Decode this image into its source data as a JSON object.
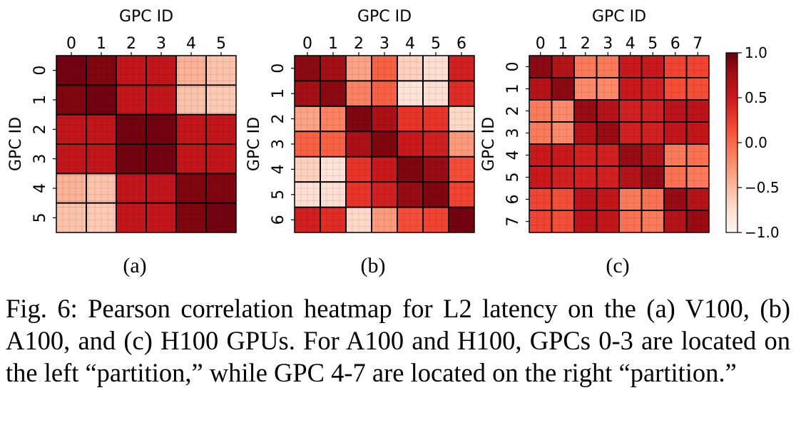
{
  "caption": "Fig. 6: Pearson correlation heatmap for L2 latency on the (a) V100, (b) A100, and (c) H100 GPUs. For A100 and H100, GPCs 0-3 are located on the left “partition,” while GPC 4-7 are located on the right “partition.”",
  "colorbar": {
    "ticks": [
      "1.0",
      "0.5",
      "0.0",
      "−0.5",
      "−1.0"
    ],
    "vmin": -1.0,
    "vmax": 1.0,
    "colormap": "Reds",
    "low_color": "#fff5f0",
    "high_color": "#67000d"
  },
  "chart_data": [
    {
      "type": "heatmap",
      "panel_label": "(a)",
      "xlabel": "GPC ID",
      "ylabel": "GPC ID",
      "x_axis_position": "top",
      "categories": [
        "0",
        "1",
        "2",
        "3",
        "4",
        "5"
      ],
      "values": [
        [
          0.95,
          0.9,
          0.55,
          0.55,
          -0.45,
          -0.55
        ],
        [
          0.9,
          0.95,
          0.55,
          0.55,
          -0.55,
          -0.6
        ],
        [
          0.55,
          0.55,
          0.95,
          0.95,
          0.55,
          0.55
        ],
        [
          0.55,
          0.55,
          0.95,
          0.95,
          0.55,
          0.55
        ],
        [
          -0.45,
          -0.55,
          0.55,
          0.55,
          0.9,
          0.9
        ],
        [
          -0.55,
          -0.6,
          0.55,
          0.55,
          0.9,
          0.95
        ]
      ]
    },
    {
      "type": "heatmap",
      "panel_label": "(b)",
      "xlabel": "GPC ID",
      "ylabel": "GPC ID",
      "x_axis_position": "top",
      "categories": [
        "0",
        "1",
        "2",
        "3",
        "4",
        "5",
        "6"
      ],
      "values": [
        [
          0.85,
          0.75,
          -0.35,
          0.05,
          -0.65,
          -0.75,
          0.45
        ],
        [
          0.75,
          0.85,
          -0.15,
          0.05,
          -0.8,
          -0.75,
          0.35
        ],
        [
          -0.35,
          -0.15,
          0.9,
          0.7,
          0.3,
          0.3,
          -0.7
        ],
        [
          0.05,
          0.05,
          0.7,
          0.9,
          0.5,
          0.45,
          -0.3
        ],
        [
          -0.65,
          -0.8,
          0.3,
          0.5,
          0.9,
          0.8,
          0.15
        ],
        [
          -0.75,
          -0.75,
          0.3,
          0.45,
          0.8,
          0.9,
          0.2
        ],
        [
          0.45,
          0.35,
          -0.7,
          -0.3,
          0.15,
          0.2,
          0.95
        ]
      ]
    },
    {
      "type": "heatmap",
      "panel_label": "(c)",
      "xlabel": "GPC ID",
      "ylabel": "GPC ID",
      "x_axis_position": "top",
      "categories": [
        "0",
        "1",
        "2",
        "3",
        "4",
        "5",
        "6",
        "7"
      ],
      "values": [
        [
          0.85,
          0.65,
          -0.1,
          -0.1,
          0.5,
          0.5,
          0.2,
          0.2
        ],
        [
          0.65,
          0.85,
          -0.2,
          -0.2,
          0.5,
          0.45,
          0.15,
          0.15
        ],
        [
          -0.1,
          -0.2,
          0.8,
          0.65,
          0.45,
          0.45,
          0.6,
          0.6
        ],
        [
          -0.1,
          -0.2,
          0.65,
          0.8,
          0.45,
          0.45,
          0.55,
          0.55
        ],
        [
          0.5,
          0.5,
          0.45,
          0.45,
          0.8,
          0.65,
          -0.1,
          -0.05
        ],
        [
          0.5,
          0.45,
          0.45,
          0.45,
          0.65,
          0.8,
          -0.05,
          -0.1
        ],
        [
          0.2,
          0.15,
          0.6,
          0.55,
          -0.1,
          -0.05,
          0.8,
          0.65
        ],
        [
          0.2,
          0.15,
          0.6,
          0.55,
          -0.05,
          -0.1,
          0.65,
          0.8
        ]
      ]
    }
  ]
}
